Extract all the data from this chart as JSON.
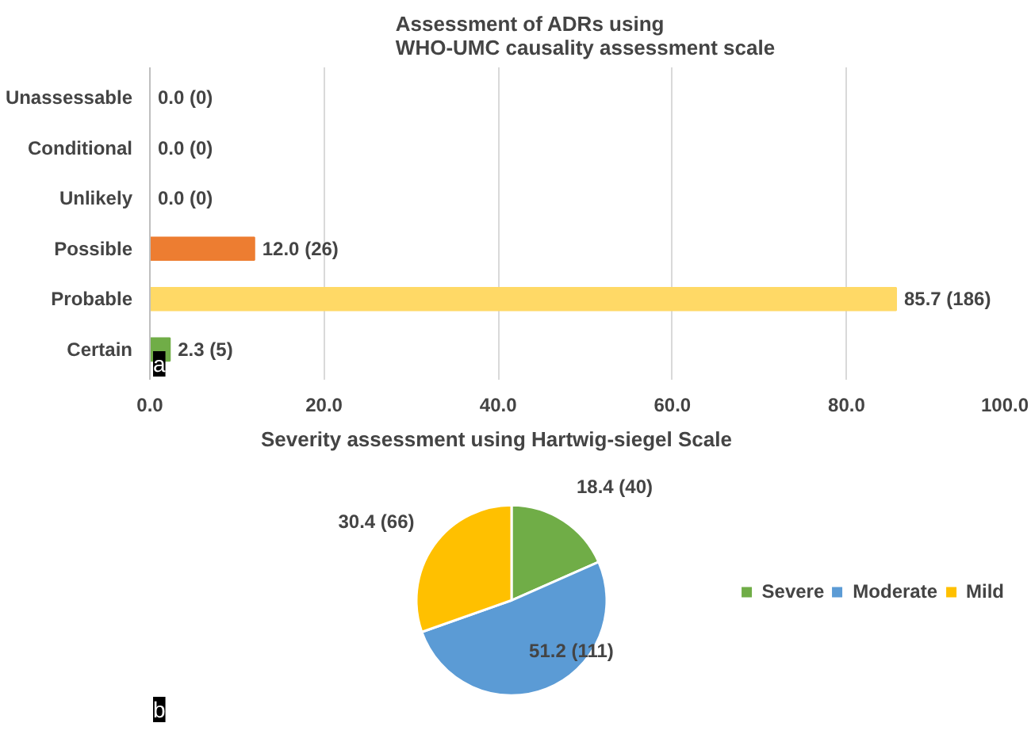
{
  "chart_data": [
    {
      "type": "bar",
      "orientation": "horizontal",
      "title": "Assessment of ADRs using\nWHO-UMC causality assessment scale",
      "categories": [
        "Unassessable",
        "Conditional",
        "Unlikely",
        "Possible",
        "Probable",
        "Certain"
      ],
      "values": [
        0.0,
        0.0,
        0.0,
        12.0,
        85.7,
        2.3
      ],
      "colors": [
        "#ed7d31",
        "#ed7d31",
        "#ed7d31",
        "#ed7d31",
        "#ffd966",
        "#70ad47"
      ],
      "value_labels": [
        "0.0 (0)",
        "0.0 (0)",
        "0.0 (0)",
        "12.0 (26)",
        "85.7 (186)",
        "2.3 (5)"
      ],
      "xlim": [
        0,
        100
      ],
      "xticks": [
        {
          "value": 0,
          "label": "0.0"
        },
        {
          "value": 20,
          "label": "20.0"
        },
        {
          "value": 40,
          "label": "40.0"
        },
        {
          "value": 60,
          "label": "60.0"
        },
        {
          "value": 80,
          "label": "80.0"
        },
        {
          "value": 100,
          "label": "100.0"
        }
      ],
      "grid": "x",
      "annotations": [
        "a"
      ]
    },
    {
      "type": "pie",
      "title": "Severity assessment using Hartwig-siegel Scale",
      "categories": [
        "Severe",
        "Moderate",
        "Mild"
      ],
      "values": [
        18.4,
        51.2,
        30.4
      ],
      "colors": [
        "#70ad47",
        "#5b9bd5",
        "#ffc000"
      ],
      "value_labels": [
        "18.4 (40)",
        "51.2 (111)",
        "30.4 (66)"
      ],
      "legend": "right",
      "annotations": [
        "b"
      ]
    }
  ]
}
